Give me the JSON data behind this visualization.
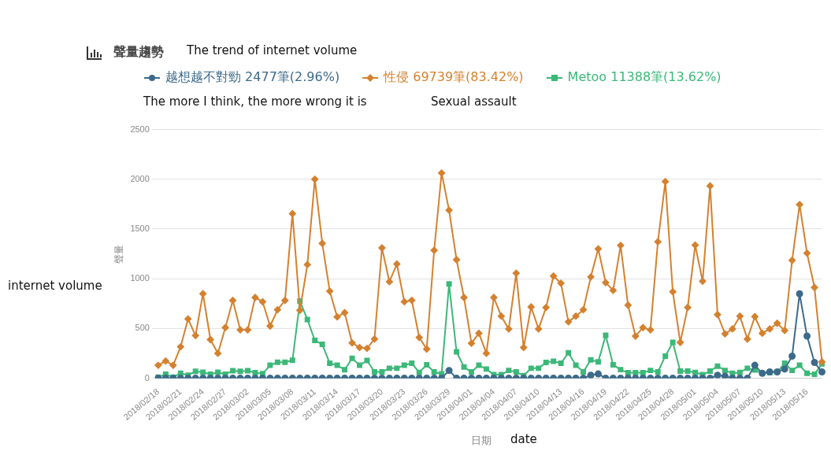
{
  "chart_data": {
    "type": "line",
    "title": "聲量趨勢",
    "xlabel": "日期",
    "ylabel": "聲量",
    "annotations": [
      "The trend of internet volume",
      "The more I think, the more wrong it is",
      "Sexual assault",
      "internet volume",
      "date"
    ],
    "categories": [
      "2018/02/18",
      null,
      null,
      "2018/02/21",
      null,
      null,
      "2018/02/24",
      null,
      null,
      "2018/02/27",
      null,
      null,
      "2018/03/02",
      null,
      null,
      "2018/03/05",
      null,
      null,
      "2018/03/08",
      null,
      null,
      "2018/03/11",
      null,
      null,
      "2018/03/14",
      null,
      null,
      "2018/03/17",
      null,
      null,
      "2018/03/20",
      null,
      null,
      "2018/03/23",
      null,
      null,
      "2018/03/26",
      null,
      null,
      "2018/03/29",
      null,
      null,
      "2018/04/01",
      null,
      null,
      "2018/04/04",
      null,
      null,
      "2018/04/07",
      null,
      null,
      "2018/04/10",
      null,
      null,
      "2018/04/13",
      null,
      null,
      "2018/04/16",
      null,
      null,
      "2018/04/19",
      null,
      null,
      "2018/04/22",
      null,
      null,
      "2018/04/25",
      null,
      null,
      "2018/04/28",
      null,
      null,
      "2018/05/01",
      null,
      null,
      "2018/05/04",
      null,
      null,
      "2018/05/07",
      null,
      null,
      "2018/05/10",
      null,
      null,
      "2018/05/13",
      null,
      null,
      "2018/05/16",
      null,
      null
    ],
    "series": [
      {
        "name": "越想越不對勁 2477筆(2.96%)",
        "color": "#3d6a8a",
        "marker": "circle",
        "values": [
          0,
          0,
          0,
          0,
          0,
          0,
          0,
          0,
          0,
          0,
          0,
          0,
          0,
          0,
          0,
          0,
          0,
          0,
          0,
          0,
          0,
          0,
          0,
          0,
          0,
          0,
          0,
          0,
          0,
          0,
          0,
          0,
          0,
          0,
          0,
          0,
          0,
          0,
          0,
          78,
          0,
          0,
          0,
          0,
          0,
          0,
          0,
          0,
          0,
          0,
          0,
          0,
          0,
          0,
          0,
          0,
          0,
          0,
          30,
          43,
          0,
          0,
          0,
          0,
          0,
          0,
          0,
          0,
          0,
          0,
          0,
          0,
          0,
          0,
          0,
          30,
          20,
          0,
          0,
          0,
          130,
          49,
          63,
          63,
          92,
          222,
          849,
          423,
          158,
          63
        ]
      },
      {
        "name": "性侵 69739筆(83.42%)",
        "color": "#d4812f",
        "marker": "diamond",
        "values": [
          130,
          173,
          130,
          316,
          596,
          429,
          849,
          388,
          250,
          509,
          782,
          486,
          486,
          811,
          768,
          524,
          688,
          782,
          1654,
          682,
          1142,
          2000,
          1355,
          875,
          616,
          659,
          355,
          308,
          300,
          394,
          1310,
          970,
          1148,
          768,
          783,
          409,
          293,
          1286,
          2063,
          1689,
          1191,
          811,
          351,
          452,
          250,
          811,
          624,
          495,
          1056,
          308,
          716,
          495,
          711,
          1027,
          955,
          567,
          624,
          688,
          1018,
          1300,
          961,
          883,
          1335,
          734,
          423,
          509,
          486,
          1372,
          1977,
          869,
          360,
          711,
          1338,
          975,
          1933,
          639,
          446,
          495,
          624,
          394,
          619,
          452,
          495,
          552,
          480,
          1185,
          1746,
          1257,
          912,
          164
        ]
      },
      {
        "name": "Metoo 11388筆(13.62%)",
        "color": "#3cb878",
        "marker": "square",
        "values": [
          10,
          40,
          10,
          50,
          30,
          70,
          60,
          40,
          60,
          40,
          75,
          70,
          75,
          55,
          45,
          130,
          160,
          160,
          180,
          775,
          590,
          380,
          340,
          150,
          130,
          85,
          200,
          130,
          178,
          63,
          63,
          100,
          100,
          130,
          150,
          58,
          135,
          63,
          43,
          947,
          265,
          112,
          63,
          130,
          92,
          35,
          35,
          78,
          63,
          26,
          100,
          100,
          158,
          170,
          150,
          256,
          130,
          63,
          184,
          164,
          432,
          135,
          86,
          55,
          55,
          55,
          78,
          63,
          222,
          360,
          72,
          72,
          58,
          35,
          72,
          121,
          78,
          49,
          58,
          100,
          83,
          49,
          55,
          63,
          150,
          78,
          130,
          49,
          40,
          144
        ]
      }
    ],
    "ylim": [
      0,
      2500
    ],
    "yticks": [
      0,
      500,
      1000,
      1500,
      2000,
      2500
    ],
    "grid": "y",
    "legend": "top",
    "line_style": "solid"
  }
}
